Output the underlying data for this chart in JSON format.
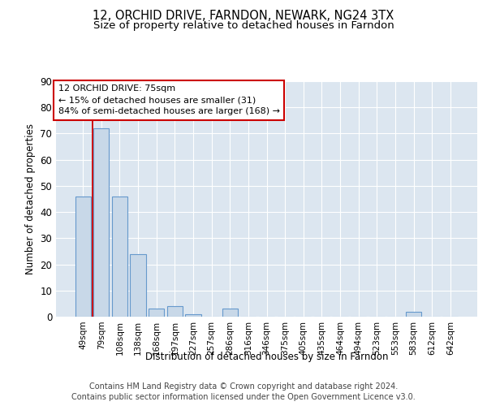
{
  "title1": "12, ORCHID DRIVE, FARNDON, NEWARK, NG24 3TX",
  "title2": "Size of property relative to detached houses in Farndon",
  "xlabel": "Distribution of detached houses by size in Farndon",
  "ylabel": "Number of detached properties",
  "categories": [
    "49sqm",
    "79sqm",
    "108sqm",
    "138sqm",
    "168sqm",
    "197sqm",
    "227sqm",
    "257sqm",
    "286sqm",
    "316sqm",
    "346sqm",
    "375sqm",
    "405sqm",
    "435sqm",
    "464sqm",
    "494sqm",
    "523sqm",
    "553sqm",
    "583sqm",
    "612sqm",
    "642sqm"
  ],
  "values": [
    46,
    72,
    46,
    24,
    3,
    4,
    1,
    0,
    3,
    0,
    0,
    0,
    0,
    0,
    0,
    0,
    0,
    0,
    2,
    0,
    0
  ],
  "bar_color": "#c8d8e8",
  "bar_edge_color": "#6699cc",
  "vline_color": "#cc0000",
  "annotation_text": "12 ORCHID DRIVE: 75sqm\n← 15% of detached houses are smaller (31)\n84% of semi-detached houses are larger (168) →",
  "annotation_box_color": "#ffffff",
  "annotation_box_edge": "#cc0000",
  "ylim": [
    0,
    90
  ],
  "yticks": [
    0,
    10,
    20,
    30,
    40,
    50,
    60,
    70,
    80,
    90
  ],
  "background_color": "#dce6f0",
  "footer_line1": "Contains HM Land Registry data © Crown copyright and database right 2024.",
  "footer_line2": "Contains public sector information licensed under the Open Government Licence v3.0.",
  "title1_fontsize": 10.5,
  "title2_fontsize": 9.5,
  "axis_fontsize": 8.5,
  "tick_fontsize": 7.5,
  "footer_fontsize": 7
}
